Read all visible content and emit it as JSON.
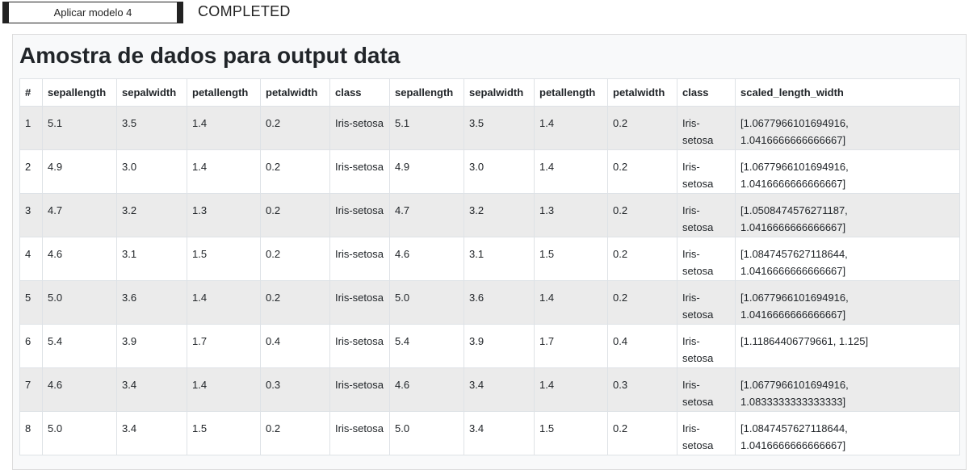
{
  "toolbar": {
    "apply_label": "Aplicar modelo 4",
    "status": "COMPLETED"
  },
  "panel": {
    "title": "Amostra de dados para output data"
  },
  "table": {
    "headers": [
      "#",
      "sepallength",
      "sepalwidth",
      "petallength",
      "petalwidth",
      "class",
      "sepallength",
      "sepalwidth",
      "petallength",
      "petalwidth",
      "class",
      "scaled_length_width"
    ],
    "rows": [
      [
        "1",
        "5.1",
        "3.5",
        "1.4",
        "0.2",
        "Iris-setosa",
        "5.1",
        "3.5",
        "1.4",
        "0.2",
        "Iris-setosa",
        "[1.0677966101694916, 1.0416666666666667]"
      ],
      [
        "2",
        "4.9",
        "3.0",
        "1.4",
        "0.2",
        "Iris-setosa",
        "4.9",
        "3.0",
        "1.4",
        "0.2",
        "Iris-setosa",
        "[1.0677966101694916, 1.0416666666666667]"
      ],
      [
        "3",
        "4.7",
        "3.2",
        "1.3",
        "0.2",
        "Iris-setosa",
        "4.7",
        "3.2",
        "1.3",
        "0.2",
        "Iris-setosa",
        "[1.0508474576271187, 1.0416666666666667]"
      ],
      [
        "4",
        "4.6",
        "3.1",
        "1.5",
        "0.2",
        "Iris-setosa",
        "4.6",
        "3.1",
        "1.5",
        "0.2",
        "Iris-setosa",
        "[1.0847457627118644, 1.0416666666666667]"
      ],
      [
        "5",
        "5.0",
        "3.6",
        "1.4",
        "0.2",
        "Iris-setosa",
        "5.0",
        "3.6",
        "1.4",
        "0.2",
        "Iris-setosa",
        "[1.0677966101694916, 1.0416666666666667]"
      ],
      [
        "6",
        "5.4",
        "3.9",
        "1.7",
        "0.4",
        "Iris-setosa",
        "5.4",
        "3.9",
        "1.7",
        "0.4",
        "Iris-setosa",
        "[1.11864406779661, 1.125]"
      ],
      [
        "7",
        "4.6",
        "3.4",
        "1.4",
        "0.3",
        "Iris-setosa",
        "4.6",
        "3.4",
        "1.4",
        "0.3",
        "Iris-setosa",
        "[1.0677966101694916, 1.0833333333333333]"
      ],
      [
        "8",
        "5.0",
        "3.4",
        "1.5",
        "0.2",
        "Iris-setosa",
        "5.0",
        "3.4",
        "1.5",
        "0.2",
        "Iris-setosa",
        "[1.0847457627118644, 1.0416666666666667]"
      ]
    ]
  }
}
